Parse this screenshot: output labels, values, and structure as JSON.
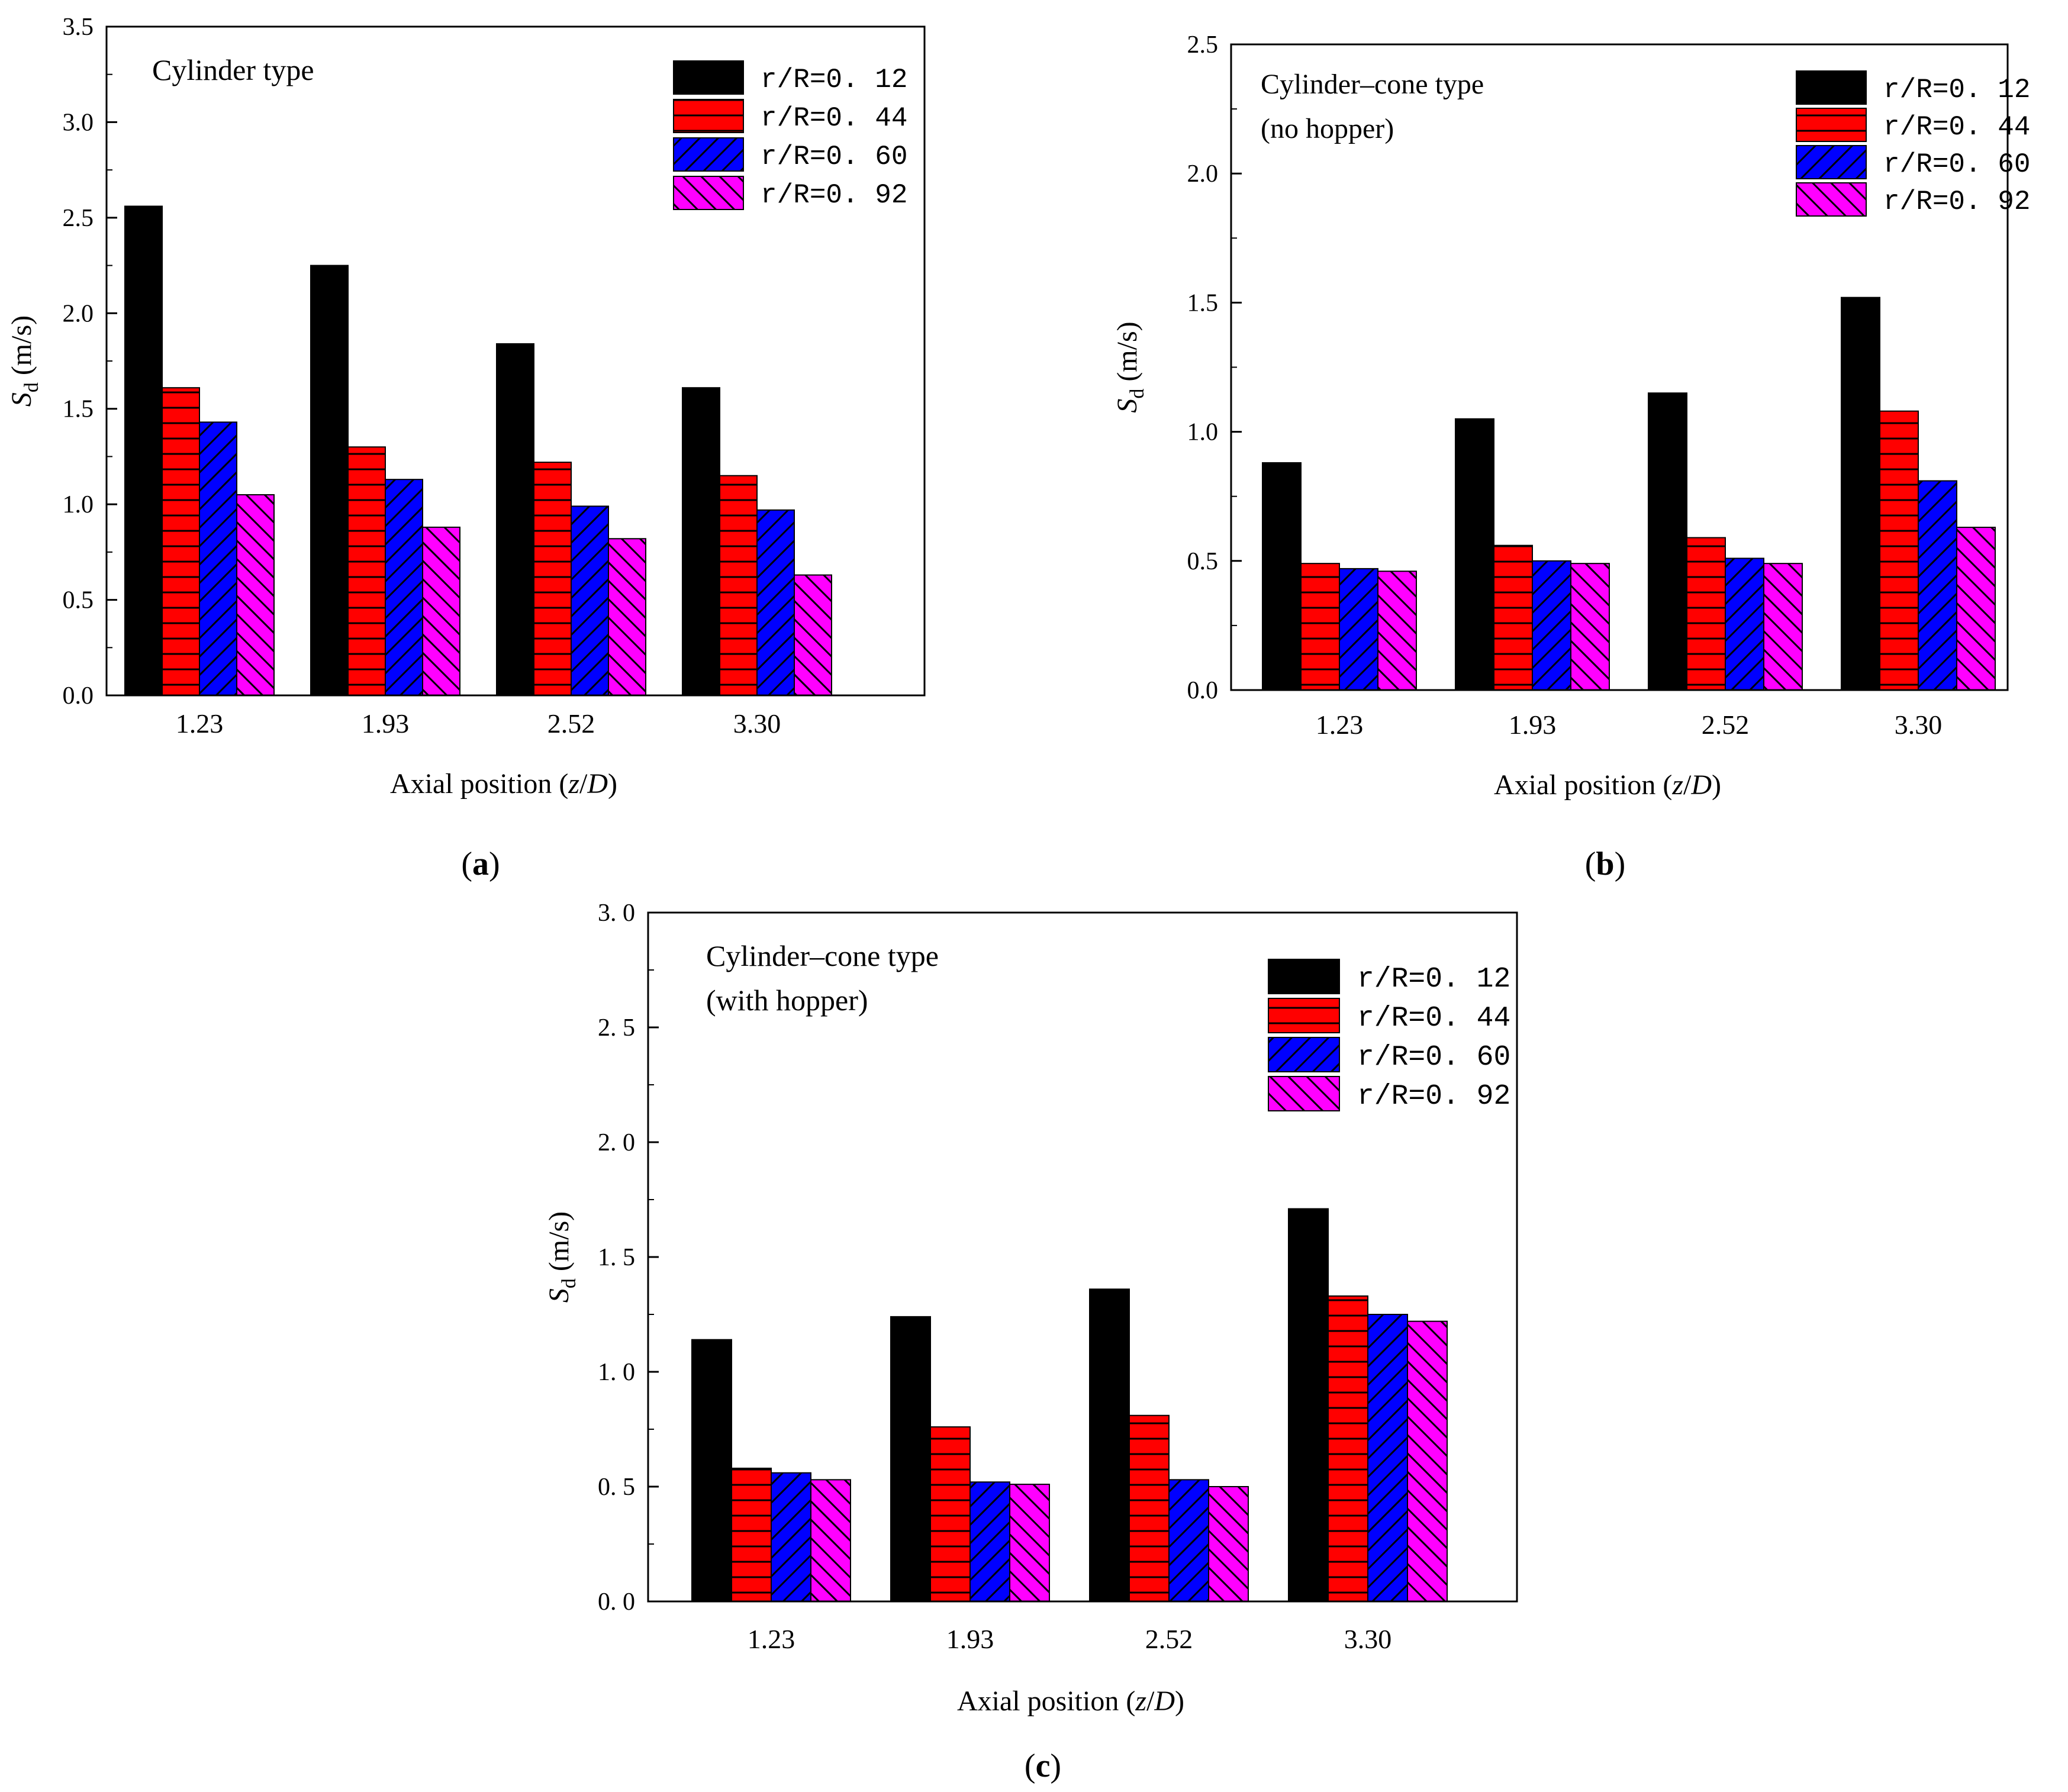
{
  "legend_series": [
    "r/R=0. 12",
    "r/R=0. 44",
    "r/R=0. 60",
    "r/R=0. 92"
  ],
  "colors": {
    "series": [
      "#000000",
      "#ff0000",
      "#0000ff",
      "#ff00ff"
    ],
    "hatch": [
      "#000000",
      "#000000",
      "#000000",
      "#000000"
    ],
    "axis": "#000000"
  },
  "patterns": [
    "solid",
    "horizontal",
    "diagonal-up",
    "diagonal-down"
  ],
  "chart_data": [
    {
      "type": "bar",
      "panel_label": "a",
      "title": "",
      "annotation": [
        "Cylinder type"
      ],
      "xlabel_prefix": "Axial position (",
      "xlabel_var1": "z",
      "xlabel_sep": "/",
      "xlabel_var2": "D",
      "xlabel_suffix": ")",
      "ylabel_main": "S",
      "ylabel_sub": "d",
      "ylabel_unit": "(m/s)",
      "categories": [
        "1.23",
        "1.93",
        "2.52",
        "3.30"
      ],
      "ylim": [
        0,
        3.5
      ],
      "yticks": [
        "0.0",
        "0.5",
        "1.0",
        "1.5",
        "2.0",
        "2.5",
        "3.0",
        "3.5"
      ],
      "ytick_values": [
        0,
        0.5,
        1.0,
        1.5,
        2.0,
        2.5,
        3.0,
        3.5
      ],
      "legend_position": "top-right",
      "series": [
        {
          "name": "r/R=0. 12",
          "values": [
            2.56,
            2.25,
            1.84,
            1.61
          ]
        },
        {
          "name": "r/R=0. 44",
          "values": [
            1.61,
            1.3,
            1.22,
            1.15
          ]
        },
        {
          "name": "r/R=0. 60",
          "values": [
            1.43,
            1.13,
            0.99,
            0.97
          ]
        },
        {
          "name": "r/R=0. 92",
          "values": [
            1.05,
            0.88,
            0.82,
            0.63
          ]
        }
      ]
    },
    {
      "type": "bar",
      "panel_label": "b",
      "title": "",
      "annotation": [
        "Cylinder–cone type",
        "(no hopper)"
      ],
      "xlabel_prefix": "Axial position (",
      "xlabel_var1": "z",
      "xlabel_sep": "/",
      "xlabel_var2": "D",
      "xlabel_suffix": ")",
      "ylabel_main": "S",
      "ylabel_sub": "d",
      "ylabel_unit": "(m/s)",
      "categories": [
        "1.23",
        "1.93",
        "2.52",
        "3.30"
      ],
      "ylim": [
        0,
        2.5
      ],
      "yticks": [
        "0.0",
        "0.5",
        "1.0",
        "1.5",
        "2.0",
        "2.5"
      ],
      "ytick_values": [
        0,
        0.5,
        1.0,
        1.5,
        2.0,
        2.5
      ],
      "legend_position": "top-right",
      "series": [
        {
          "name": "r/R=0. 12",
          "values": [
            0.88,
            1.05,
            1.15,
            1.52
          ]
        },
        {
          "name": "r/R=0. 44",
          "values": [
            0.49,
            0.56,
            0.59,
            1.08
          ]
        },
        {
          "name": "r/R=0. 60",
          "values": [
            0.47,
            0.5,
            0.51,
            0.81
          ]
        },
        {
          "name": "r/R=0. 92",
          "values": [
            0.46,
            0.49,
            0.49,
            0.63
          ]
        }
      ]
    },
    {
      "type": "bar",
      "panel_label": "c",
      "title": "",
      "annotation": [
        "Cylinder–cone type",
        "(with hopper)"
      ],
      "xlabel_prefix": "Axial position (",
      "xlabel_var1": "z",
      "xlabel_sep": "/",
      "xlabel_var2": "D",
      "xlabel_suffix": ")",
      "ylabel_main": "S",
      "ylabel_sub": "d",
      "ylabel_unit": "(m/s)",
      "categories": [
        "1.23",
        "1.93",
        "2.52",
        "3.30"
      ],
      "ylim": [
        0,
        3.0
      ],
      "yticks": [
        "0. 0",
        "0. 5",
        "1. 0",
        "1. 5",
        "2. 0",
        "2. 5",
        "3. 0"
      ],
      "ytick_values": [
        0,
        0.5,
        1.0,
        1.5,
        2.0,
        2.5,
        3.0
      ],
      "legend_position": "top-right",
      "series": [
        {
          "name": "r/R=0. 12",
          "values": [
            1.14,
            1.24,
            1.36,
            1.71
          ]
        },
        {
          "name": "r/R=0. 44",
          "values": [
            0.58,
            0.76,
            0.81,
            1.33
          ]
        },
        {
          "name": "r/R=0. 60",
          "values": [
            0.56,
            0.52,
            0.53,
            1.25
          ]
        },
        {
          "name": "r/R=0. 92",
          "values": [
            0.53,
            0.51,
            0.5,
            1.22
          ]
        }
      ]
    }
  ]
}
